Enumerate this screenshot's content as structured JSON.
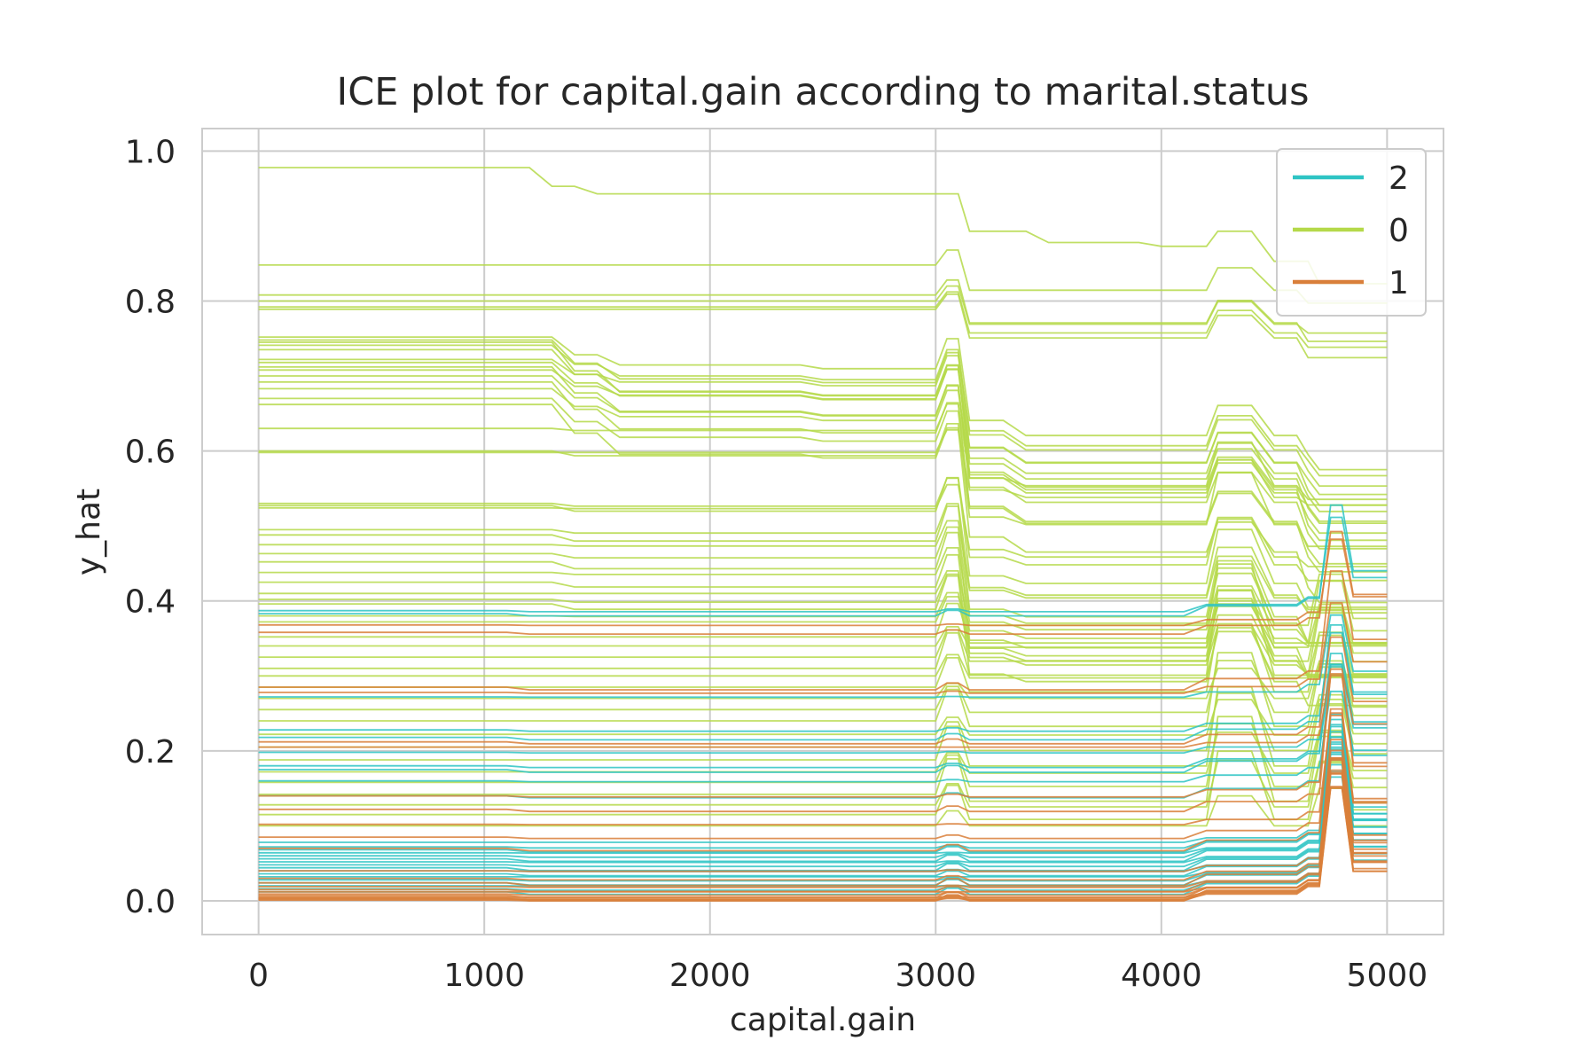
{
  "chart_data": {
    "type": "line",
    "title": "ICE plot for capital.gain according to marital.status",
    "xlabel": "capital.gain",
    "ylabel": "y_hat",
    "xlim": [
      -250,
      5250
    ],
    "ylim": [
      -0.045,
      1.03
    ],
    "xticks": [
      0,
      1000,
      2000,
      3000,
      4000,
      5000
    ],
    "xtick_labels": [
      "0",
      "1000",
      "2000",
      "3000",
      "4000",
      "5000"
    ],
    "yticks": [
      0.0,
      0.2,
      0.4,
      0.6,
      0.8,
      1.0
    ],
    "ytick_labels": [
      "0.0",
      "0.2",
      "0.4",
      "0.6",
      "0.8",
      "1.0"
    ],
    "grid": true,
    "legend_position": "top-right",
    "x_grid_points": [
      0,
      100,
      200,
      300,
      400,
      500,
      600,
      700,
      800,
      900,
      1000,
      1100,
      1200,
      1300,
      1400,
      1500,
      1600,
      1700,
      1800,
      1900,
      2000,
      2100,
      2200,
      2300,
      2400,
      2500,
      2600,
      2700,
      2800,
      2900,
      3000,
      3050,
      3100,
      3150,
      3200,
      3300,
      3400,
      3500,
      3600,
      3700,
      3800,
      3900,
      4000,
      4100,
      4200,
      4250,
      4300,
      4400,
      4500,
      4600,
      4650,
      4700,
      4750,
      4800,
      4850,
      4900,
      4950,
      5000
    ],
    "legend": [
      {
        "label": "2",
        "color": "#2ec4c4"
      },
      {
        "label": "0",
        "color": "#b5d94a"
      },
      {
        "label": "1",
        "color": "#d97f3a"
      }
    ],
    "series": [
      {
        "group": "0",
        "color": "#b5d94a",
        "profile": "top",
        "start": 0.978
      },
      {
        "group": "0",
        "color": "#b5d94a",
        "profile": "step1400_3100",
        "start": 0.848
      },
      {
        "group": "0",
        "color": "#b5d94a",
        "profile": "step1400_3100",
        "start": 0.808
      },
      {
        "group": "0",
        "color": "#b5d94a",
        "profile": "step1400_3100",
        "start": 0.8
      },
      {
        "group": "0",
        "color": "#b5d94a",
        "profile": "step1400_3100",
        "start": 0.792
      },
      {
        "group": "0",
        "color": "#b5d94a",
        "profile": "step1400_3100",
        "start": 0.789
      },
      {
        "group": "0",
        "color": "#b5d94a",
        "profile": "drop1400",
        "start": 0.752
      },
      {
        "group": "0",
        "color": "#b5d94a",
        "profile": "drop1400",
        "start": 0.748
      },
      {
        "group": "0",
        "color": "#b5d94a",
        "profile": "drop1400",
        "start": 0.745
      },
      {
        "group": "0",
        "color": "#b5d94a",
        "profile": "drop1400",
        "start": 0.741
      },
      {
        "group": "0",
        "color": "#b5d94a",
        "profile": "drop1400",
        "start": 0.735
      },
      {
        "group": "0",
        "color": "#b5d94a",
        "profile": "drop1400",
        "start": 0.722
      },
      {
        "group": "0",
        "color": "#b5d94a",
        "profile": "drop1400",
        "start": 0.718
      },
      {
        "group": "0",
        "color": "#b5d94a",
        "profile": "drop1400",
        "start": 0.712
      },
      {
        "group": "0",
        "color": "#b5d94a",
        "profile": "drop1400",
        "start": 0.708
      },
      {
        "group": "0",
        "color": "#b5d94a",
        "profile": "drop1400",
        "start": 0.7
      },
      {
        "group": "0",
        "color": "#b5d94a",
        "profile": "drop1400",
        "start": 0.692
      },
      {
        "group": "0",
        "color": "#b5d94a",
        "profile": "drop1400",
        "start": 0.683
      },
      {
        "group": "0",
        "color": "#b5d94a",
        "profile": "drop1400",
        "start": 0.67
      },
      {
        "group": "0",
        "color": "#b5d94a",
        "profile": "drop1400",
        "start": 0.662
      },
      {
        "group": "0",
        "color": "#b5d94a",
        "profile": "drop3100_bump",
        "start": 0.63
      },
      {
        "group": "0",
        "color": "#b5d94a",
        "profile": "drop3100_bump",
        "start": 0.6
      },
      {
        "group": "0",
        "color": "#b5d94a",
        "profile": "drop3100_bump",
        "start": 0.598
      },
      {
        "group": "0",
        "color": "#b5d94a",
        "profile": "drop3100_bump",
        "start": 0.53
      },
      {
        "group": "0",
        "color": "#b5d94a",
        "profile": "drop3100_bump",
        "start": 0.527
      },
      {
        "group": "0",
        "color": "#b5d94a",
        "profile": "drop3100_bump",
        "start": 0.524
      },
      {
        "group": "0",
        "color": "#b5d94a",
        "profile": "drop3100_bump",
        "start": 0.495
      },
      {
        "group": "0",
        "color": "#b5d94a",
        "profile": "drop3100_bump",
        "start": 0.488
      },
      {
        "group": "0",
        "color": "#b5d94a",
        "profile": "drop3100_bump",
        "start": 0.475
      },
      {
        "group": "0",
        "color": "#b5d94a",
        "profile": "drop3100_bump",
        "start": 0.463
      },
      {
        "group": "0",
        "color": "#b5d94a",
        "profile": "drop3100_bump",
        "start": 0.452
      },
      {
        "group": "0",
        "color": "#b5d94a",
        "profile": "drop3100_bump",
        "start": 0.438
      },
      {
        "group": "0",
        "color": "#b5d94a",
        "profile": "drop3100_bump",
        "start": 0.425
      },
      {
        "group": "0",
        "color": "#b5d94a",
        "profile": "drop3100_bump",
        "start": 0.41
      },
      {
        "group": "0",
        "color": "#b5d94a",
        "profile": "drop3100_bump",
        "start": 0.402
      },
      {
        "group": "0",
        "color": "#b5d94a",
        "profile": "drop3100_bump",
        "start": 0.396
      },
      {
        "group": "0",
        "color": "#b5d94a",
        "profile": "drop3100_bump",
        "start": 0.38
      },
      {
        "group": "0",
        "color": "#b5d94a",
        "profile": "rise4200_peak",
        "start": 0.372
      },
      {
        "group": "0",
        "color": "#b5d94a",
        "profile": "rise4200_peak",
        "start": 0.352
      },
      {
        "group": "0",
        "color": "#b5d94a",
        "profile": "rise4200_peak",
        "start": 0.34
      },
      {
        "group": "0",
        "color": "#b5d94a",
        "profile": "rise4200_peak",
        "start": 0.325
      },
      {
        "group": "0",
        "color": "#b5d94a",
        "profile": "rise4200_peak",
        "start": 0.31
      },
      {
        "group": "0",
        "color": "#b5d94a",
        "profile": "rise4200_peak",
        "start": 0.3
      },
      {
        "group": "0",
        "color": "#b5d94a",
        "profile": "rise4200_peak",
        "start": 0.285
      },
      {
        "group": "0",
        "color": "#b5d94a",
        "profile": "rise4200_peak",
        "start": 0.27
      },
      {
        "group": "0",
        "color": "#b5d94a",
        "profile": "rise4200_peak",
        "start": 0.255
      },
      {
        "group": "0",
        "color": "#b5d94a",
        "profile": "rise4200_peak",
        "start": 0.24
      },
      {
        "group": "0",
        "color": "#b5d94a",
        "profile": "rise4200_peak",
        "start": 0.222
      },
      {
        "group": "0",
        "color": "#b5d94a",
        "profile": "rise4200_peak",
        "start": 0.205
      },
      {
        "group": "0",
        "color": "#b5d94a",
        "profile": "rise4200_peak",
        "start": 0.188
      },
      {
        "group": "0",
        "color": "#b5d94a",
        "profile": "rise4200_peak",
        "start": 0.172
      },
      {
        "group": "0",
        "color": "#b5d94a",
        "profile": "rise4200_peak",
        "start": 0.158
      },
      {
        "group": "0",
        "color": "#b5d94a",
        "profile": "rise4200_peak",
        "start": 0.142
      },
      {
        "group": "0",
        "color": "#b5d94a",
        "profile": "rise4200_peak",
        "start": 0.128
      },
      {
        "group": "0",
        "color": "#b5d94a",
        "profile": "rise4200_peak",
        "start": 0.115
      },
      {
        "group": "0",
        "color": "#b5d94a",
        "profile": "rise4200_peak",
        "start": 0.1
      },
      {
        "group": "2",
        "color": "#2ec4c4",
        "profile": "flat_peak",
        "start": 0.387
      },
      {
        "group": "2",
        "color": "#2ec4c4",
        "profile": "flat_peak",
        "start": 0.383
      },
      {
        "group": "2",
        "color": "#2ec4c4",
        "profile": "flat_peak",
        "start": 0.272
      },
      {
        "group": "2",
        "color": "#2ec4c4",
        "profile": "flat_peak",
        "start": 0.228
      },
      {
        "group": "2",
        "color": "#2ec4c4",
        "profile": "flat_peak",
        "start": 0.218
      },
      {
        "group": "2",
        "color": "#2ec4c4",
        "profile": "flat_peak",
        "start": 0.198
      },
      {
        "group": "2",
        "color": "#2ec4c4",
        "profile": "flat_peak",
        "start": 0.18
      },
      {
        "group": "2",
        "color": "#2ec4c4",
        "profile": "flat_peak",
        "start": 0.175
      },
      {
        "group": "2",
        "color": "#2ec4c4",
        "profile": "flat_peak",
        "start": 0.16
      },
      {
        "group": "2",
        "color": "#2ec4c4",
        "profile": "flat_peak",
        "start": 0.14
      },
      {
        "group": "2",
        "color": "#2ec4c4",
        "profile": "flat_peak",
        "start": 0.078
      },
      {
        "group": "2",
        "color": "#2ec4c4",
        "profile": "flat_peak",
        "start": 0.072
      },
      {
        "group": "2",
        "color": "#2ec4c4",
        "profile": "flat_peak",
        "start": 0.068
      },
      {
        "group": "2",
        "color": "#2ec4c4",
        "profile": "flat_peak",
        "start": 0.064
      },
      {
        "group": "2",
        "color": "#2ec4c4",
        "profile": "flat_peak",
        "start": 0.06
      },
      {
        "group": "2",
        "color": "#2ec4c4",
        "profile": "flat_peak",
        "start": 0.056
      },
      {
        "group": "2",
        "color": "#2ec4c4",
        "profile": "flat_peak",
        "start": 0.052
      },
      {
        "group": "2",
        "color": "#2ec4c4",
        "profile": "flat_peak",
        "start": 0.048
      },
      {
        "group": "2",
        "color": "#2ec4c4",
        "profile": "flat_peak",
        "start": 0.044
      },
      {
        "group": "2",
        "color": "#2ec4c4",
        "profile": "flat_peak",
        "start": 0.04
      },
      {
        "group": "2",
        "color": "#2ec4c4",
        "profile": "flat_peak",
        "start": 0.036
      },
      {
        "group": "2",
        "color": "#2ec4c4",
        "profile": "flat_peak",
        "start": 0.032
      },
      {
        "group": "2",
        "color": "#2ec4c4",
        "profile": "flat_peak",
        "start": 0.028
      },
      {
        "group": "2",
        "color": "#2ec4c4",
        "profile": "flat_peak",
        "start": 0.024
      },
      {
        "group": "2",
        "color": "#2ec4c4",
        "profile": "flat_peak",
        "start": 0.02
      },
      {
        "group": "2",
        "color": "#2ec4c4",
        "profile": "flat_peak",
        "start": 0.016
      },
      {
        "group": "2",
        "color": "#2ec4c4",
        "profile": "flat_peak",
        "start": 0.012
      },
      {
        "group": "1",
        "color": "#d97f3a",
        "profile": "flat_peak",
        "start": 0.368
      },
      {
        "group": "1",
        "color": "#d97f3a",
        "profile": "flat_peak",
        "start": 0.358
      },
      {
        "group": "1",
        "color": "#d97f3a",
        "profile": "flat_peak",
        "start": 0.285
      },
      {
        "group": "1",
        "color": "#d97f3a",
        "profile": "flat_peak",
        "start": 0.278
      },
      {
        "group": "1",
        "color": "#d97f3a",
        "profile": "flat_peak",
        "start": 0.212
      },
      {
        "group": "1",
        "color": "#d97f3a",
        "profile": "flat_peak",
        "start": 0.205
      },
      {
        "group": "1",
        "color": "#d97f3a",
        "profile": "flat_peak",
        "start": 0.14
      },
      {
        "group": "1",
        "color": "#d97f3a",
        "profile": "flat_peak",
        "start": 0.122
      },
      {
        "group": "1",
        "color": "#d97f3a",
        "profile": "flat_peak",
        "start": 0.102
      },
      {
        "group": "1",
        "color": "#d97f3a",
        "profile": "flat_peak",
        "start": 0.085
      },
      {
        "group": "1",
        "color": "#d97f3a",
        "profile": "flat_peak",
        "start": 0.07
      },
      {
        "group": "1",
        "color": "#d97f3a",
        "profile": "flat_peak",
        "start": 0.04
      },
      {
        "group": "1",
        "color": "#d97f3a",
        "profile": "flat_peak",
        "start": 0.03
      },
      {
        "group": "1",
        "color": "#d97f3a",
        "profile": "flat_peak",
        "start": 0.024
      },
      {
        "group": "1",
        "color": "#d97f3a",
        "profile": "flat_peak",
        "start": 0.019
      },
      {
        "group": "1",
        "color": "#d97f3a",
        "profile": "flat_peak",
        "start": 0.015
      },
      {
        "group": "1",
        "color": "#d97f3a",
        "profile": "flat_peak",
        "start": 0.012
      },
      {
        "group": "1",
        "color": "#d97f3a",
        "profile": "flat_peak",
        "start": 0.009
      },
      {
        "group": "1",
        "color": "#d97f3a",
        "profile": "flat_peak",
        "start": 0.007
      },
      {
        "group": "1",
        "color": "#d97f3a",
        "profile": "flat_peak",
        "start": 0.005
      },
      {
        "group": "1",
        "color": "#d97f3a",
        "profile": "flat_peak",
        "start": 0.004
      },
      {
        "group": "1",
        "color": "#d97f3a",
        "profile": "flat_peak",
        "start": 0.003
      },
      {
        "group": "1",
        "color": "#d97f3a",
        "profile": "flat_peak",
        "start": 0.002
      },
      {
        "group": "1",
        "color": "#d97f3a",
        "profile": "flat_peak",
        "start": 0.001
      }
    ]
  }
}
